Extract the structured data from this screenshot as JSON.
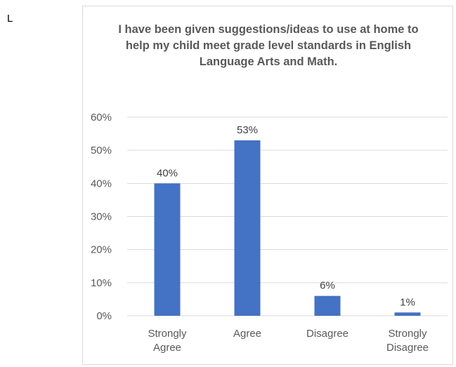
{
  "page": {
    "stray_text": "L"
  },
  "chart_data": {
    "type": "bar",
    "title": "I have been given suggestions/ideas to use at home to help my child meet grade level standards in English Language Arts and Math.",
    "categories": [
      [
        "Strongly",
        "Agree"
      ],
      [
        "Agree"
      ],
      [
        "Disagree"
      ],
      [
        "Strongly",
        "Disagree"
      ]
    ],
    "values": [
      40,
      53,
      6,
      1
    ],
    "data_labels": [
      "40%",
      "53%",
      "6%",
      "1%"
    ],
    "y_ticks": [
      "0%",
      "10%",
      "20%",
      "30%",
      "40%",
      "50%",
      "60%"
    ],
    "ylim": [
      0,
      60
    ],
    "xlabel": "",
    "ylabel": "",
    "grid": true,
    "legend": "none",
    "bar_color": "#4472C4",
    "grid_color": "#d9d9d9"
  }
}
